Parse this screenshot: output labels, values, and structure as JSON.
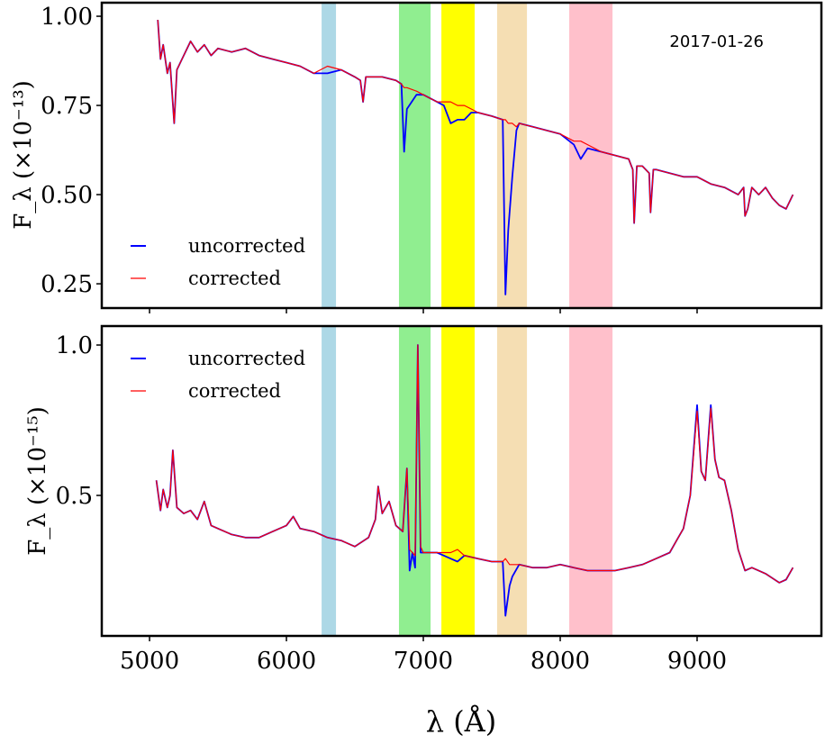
{
  "chart_data": [
    {
      "type": "line",
      "annotation": "2017-01-26",
      "ylabel": "F_λ (×10⁻¹³)",
      "ylabel_main": "F",
      "ylabel_sub": "λ",
      "ylabel_scale": "(×10",
      "ylabel_exp": "−13",
      "ylabel_close": ")",
      "xlim": [
        4651,
        9908
      ],
      "ylim": [
        0.182,
        1.038
      ],
      "yticks": [
        0.25,
        0.5,
        0.75,
        1.0
      ],
      "ytick_labels": [
        "0.25",
        "0.50",
        "0.75",
        "1.00"
      ],
      "xticks": [
        5000,
        6000,
        7000,
        8000,
        9000
      ],
      "legend": {
        "placement": "lower-left",
        "entries": [
          "uncorrected",
          "corrected"
        ]
      },
      "series": [
        {
          "name": "uncorrected",
          "color": "#0000ff",
          "x": [
            5060,
            5080,
            5100,
            5130,
            5150,
            5180,
            5200,
            5250,
            5300,
            5350,
            5400,
            5450,
            5500,
            5600,
            5700,
            5800,
            5900,
            6000,
            6100,
            6200,
            6300,
            6400,
            6500,
            6540,
            6560,
            6580,
            6600,
            6700,
            6800,
            6840,
            6860,
            6880,
            6950,
            7000,
            7100,
            7150,
            7200,
            7250,
            7300,
            7350,
            7400,
            7500,
            7580,
            7600,
            7620,
            7650,
            7680,
            7700,
            7800,
            7900,
            8000,
            8100,
            8150,
            8200,
            8300,
            8400,
            8500,
            8530,
            8540,
            8560,
            8600,
            8650,
            8660,
            8680,
            8700,
            8800,
            8900,
            9000,
            9100,
            9200,
            9300,
            9340,
            9350,
            9370,
            9400,
            9450,
            9500,
            9550,
            9600,
            9650,
            9700
          ],
          "values": [
            0.99,
            0.88,
            0.92,
            0.84,
            0.87,
            0.7,
            0.85,
            0.89,
            0.93,
            0.9,
            0.92,
            0.89,
            0.91,
            0.9,
            0.91,
            0.89,
            0.88,
            0.87,
            0.86,
            0.84,
            0.84,
            0.85,
            0.83,
            0.82,
            0.76,
            0.83,
            0.83,
            0.83,
            0.82,
            0.81,
            0.62,
            0.74,
            0.78,
            0.78,
            0.76,
            0.75,
            0.7,
            0.71,
            0.71,
            0.73,
            0.73,
            0.72,
            0.71,
            0.22,
            0.4,
            0.55,
            0.68,
            0.7,
            0.69,
            0.68,
            0.67,
            0.64,
            0.6,
            0.63,
            0.62,
            0.61,
            0.6,
            0.57,
            0.42,
            0.58,
            0.58,
            0.56,
            0.45,
            0.57,
            0.57,
            0.56,
            0.55,
            0.55,
            0.53,
            0.52,
            0.5,
            0.52,
            0.44,
            0.46,
            0.52,
            0.5,
            0.52,
            0.49,
            0.47,
            0.46,
            0.5
          ]
        },
        {
          "name": "corrected",
          "color": "#ff0000",
          "x": [
            5060,
            5080,
            5100,
            5130,
            5150,
            5180,
            5200,
            5250,
            5300,
            5350,
            5400,
            5450,
            5500,
            5600,
            5700,
            5800,
            5900,
            6000,
            6100,
            6200,
            6300,
            6400,
            6500,
            6540,
            6560,
            6580,
            6600,
            6700,
            6800,
            6840,
            6860,
            6880,
            6950,
            7000,
            7100,
            7150,
            7200,
            7250,
            7300,
            7350,
            7400,
            7500,
            7580,
            7600,
            7620,
            7650,
            7680,
            7700,
            7800,
            7900,
            8000,
            8100,
            8150,
            8200,
            8300,
            8400,
            8500,
            8530,
            8540,
            8560,
            8600,
            8650,
            8660,
            8680,
            8700,
            8800,
            8900,
            9000,
            9100,
            9200,
            9300,
            9340,
            9350,
            9370,
            9400,
            9450,
            9500,
            9550,
            9600,
            9650,
            9700
          ],
          "values": [
            0.99,
            0.88,
            0.92,
            0.84,
            0.87,
            0.7,
            0.85,
            0.89,
            0.93,
            0.9,
            0.92,
            0.89,
            0.91,
            0.9,
            0.91,
            0.89,
            0.88,
            0.87,
            0.86,
            0.84,
            0.86,
            0.85,
            0.83,
            0.82,
            0.76,
            0.83,
            0.83,
            0.83,
            0.82,
            0.81,
            0.8,
            0.8,
            0.79,
            0.78,
            0.76,
            0.76,
            0.76,
            0.75,
            0.75,
            0.74,
            0.73,
            0.72,
            0.71,
            0.71,
            0.7,
            0.7,
            0.69,
            0.7,
            0.69,
            0.68,
            0.67,
            0.65,
            0.65,
            0.64,
            0.62,
            0.61,
            0.6,
            0.57,
            0.42,
            0.58,
            0.58,
            0.56,
            0.45,
            0.57,
            0.57,
            0.56,
            0.55,
            0.55,
            0.53,
            0.52,
            0.5,
            0.52,
            0.44,
            0.46,
            0.52,
            0.5,
            0.52,
            0.49,
            0.47,
            0.46,
            0.5
          ]
        }
      ]
    },
    {
      "type": "line",
      "xlabel": "λ (Å)",
      "ylabel": "F_λ (×10⁻¹⁵)",
      "ylabel_main": "F",
      "ylabel_sub": "λ",
      "ylabel_scale": "(×10",
      "ylabel_exp": "−15",
      "ylabel_close": ")",
      "xlim": [
        4651,
        9908
      ],
      "ylim": [
        0.033,
        1.063
      ],
      "yticks": [
        0.5,
        1.0
      ],
      "ytick_labels": [
        "0.5",
        "1.0"
      ],
      "xticks": [
        5000,
        6000,
        7000,
        8000,
        9000
      ],
      "xtick_labels": [
        "5000",
        "6000",
        "7000",
        "8000",
        "9000"
      ],
      "legend": {
        "placement": "upper-left",
        "entries": [
          "uncorrected",
          "corrected"
        ]
      },
      "series": [
        {
          "name": "uncorrected",
          "color": "#0000ff",
          "x": [
            5050,
            5080,
            5100,
            5130,
            5150,
            5170,
            5200,
            5250,
            5300,
            5350,
            5400,
            5450,
            5500,
            5600,
            5700,
            5800,
            5900,
            6000,
            6050,
            6100,
            6200,
            6300,
            6400,
            6500,
            6600,
            6650,
            6670,
            6700,
            6750,
            6800,
            6850,
            6880,
            6900,
            6920,
            6940,
            6960,
            6980,
            7000,
            7100,
            7200,
            7250,
            7300,
            7400,
            7500,
            7580,
            7600,
            7630,
            7650,
            7700,
            7800,
            7900,
            8000,
            8100,
            8200,
            8300,
            8400,
            8500,
            8600,
            8700,
            8800,
            8850,
            8900,
            8950,
            9000,
            9030,
            9060,
            9100,
            9130,
            9160,
            9200,
            9250,
            9300,
            9350,
            9400,
            9500,
            9600,
            9650,
            9700
          ],
          "values": [
            0.55,
            0.45,
            0.52,
            0.46,
            0.5,
            0.65,
            0.46,
            0.44,
            0.45,
            0.42,
            0.48,
            0.4,
            0.39,
            0.37,
            0.36,
            0.36,
            0.38,
            0.4,
            0.43,
            0.39,
            0.38,
            0.36,
            0.35,
            0.33,
            0.36,
            0.42,
            0.53,
            0.44,
            0.48,
            0.4,
            0.38,
            0.59,
            0.25,
            0.31,
            0.26,
            1.0,
            0.31,
            0.31,
            0.31,
            0.29,
            0.28,
            0.3,
            0.29,
            0.28,
            0.28,
            0.1,
            0.2,
            0.23,
            0.27,
            0.26,
            0.26,
            0.27,
            0.26,
            0.25,
            0.25,
            0.25,
            0.26,
            0.27,
            0.29,
            0.31,
            0.35,
            0.39,
            0.5,
            0.8,
            0.58,
            0.55,
            0.8,
            0.62,
            0.56,
            0.55,
            0.45,
            0.32,
            0.25,
            0.26,
            0.24,
            0.21,
            0.22,
            0.26
          ]
        },
        {
          "name": "corrected",
          "color": "#ff0000",
          "x": [
            5050,
            5080,
            5100,
            5130,
            5150,
            5170,
            5200,
            5250,
            5300,
            5350,
            5400,
            5450,
            5500,
            5600,
            5700,
            5800,
            5900,
            6000,
            6050,
            6100,
            6200,
            6300,
            6400,
            6500,
            6600,
            6650,
            6670,
            6700,
            6750,
            6800,
            6850,
            6880,
            6900,
            6920,
            6940,
            6960,
            6980,
            7000,
            7100,
            7200,
            7250,
            7300,
            7400,
            7500,
            7580,
            7600,
            7630,
            7650,
            7700,
            7800,
            7900,
            8000,
            8100,
            8200,
            8300,
            8400,
            8500,
            8600,
            8700,
            8800,
            8850,
            8900,
            8950,
            9000,
            9030,
            9060,
            9100,
            9130,
            9160,
            9200,
            9250,
            9300,
            9350,
            9400,
            9500,
            9600,
            9650,
            9700
          ],
          "values": [
            0.55,
            0.45,
            0.52,
            0.46,
            0.5,
            0.65,
            0.46,
            0.44,
            0.45,
            0.42,
            0.48,
            0.4,
            0.39,
            0.37,
            0.36,
            0.36,
            0.38,
            0.4,
            0.43,
            0.39,
            0.38,
            0.36,
            0.35,
            0.33,
            0.36,
            0.42,
            0.53,
            0.44,
            0.48,
            0.4,
            0.38,
            0.59,
            0.32,
            0.31,
            0.3,
            1.0,
            0.33,
            0.31,
            0.31,
            0.31,
            0.32,
            0.3,
            0.29,
            0.28,
            0.28,
            0.29,
            0.27,
            0.27,
            0.27,
            0.26,
            0.26,
            0.27,
            0.26,
            0.25,
            0.25,
            0.25,
            0.26,
            0.27,
            0.29,
            0.31,
            0.35,
            0.39,
            0.5,
            0.78,
            0.58,
            0.55,
            0.79,
            0.62,
            0.56,
            0.55,
            0.45,
            0.32,
            0.25,
            0.26,
            0.24,
            0.21,
            0.22,
            0.26
          ]
        }
      ]
    }
  ],
  "bands": [
    {
      "name": "blue-band",
      "x0": 6257,
      "x1": 6362,
      "color": "#add8e6"
    },
    {
      "name": "green-band",
      "x0": 6822,
      "x1": 7053,
      "color": "#90ee90"
    },
    {
      "name": "yellow-band",
      "x0": 7132,
      "x1": 7375,
      "color": "#ffff00"
    },
    {
      "name": "tan-band",
      "x0": 7539,
      "x1": 7757,
      "color": "#f5deb3"
    },
    {
      "name": "pink-band",
      "x0": 8066,
      "x1": 8382,
      "color": "#ffc0cb"
    }
  ]
}
